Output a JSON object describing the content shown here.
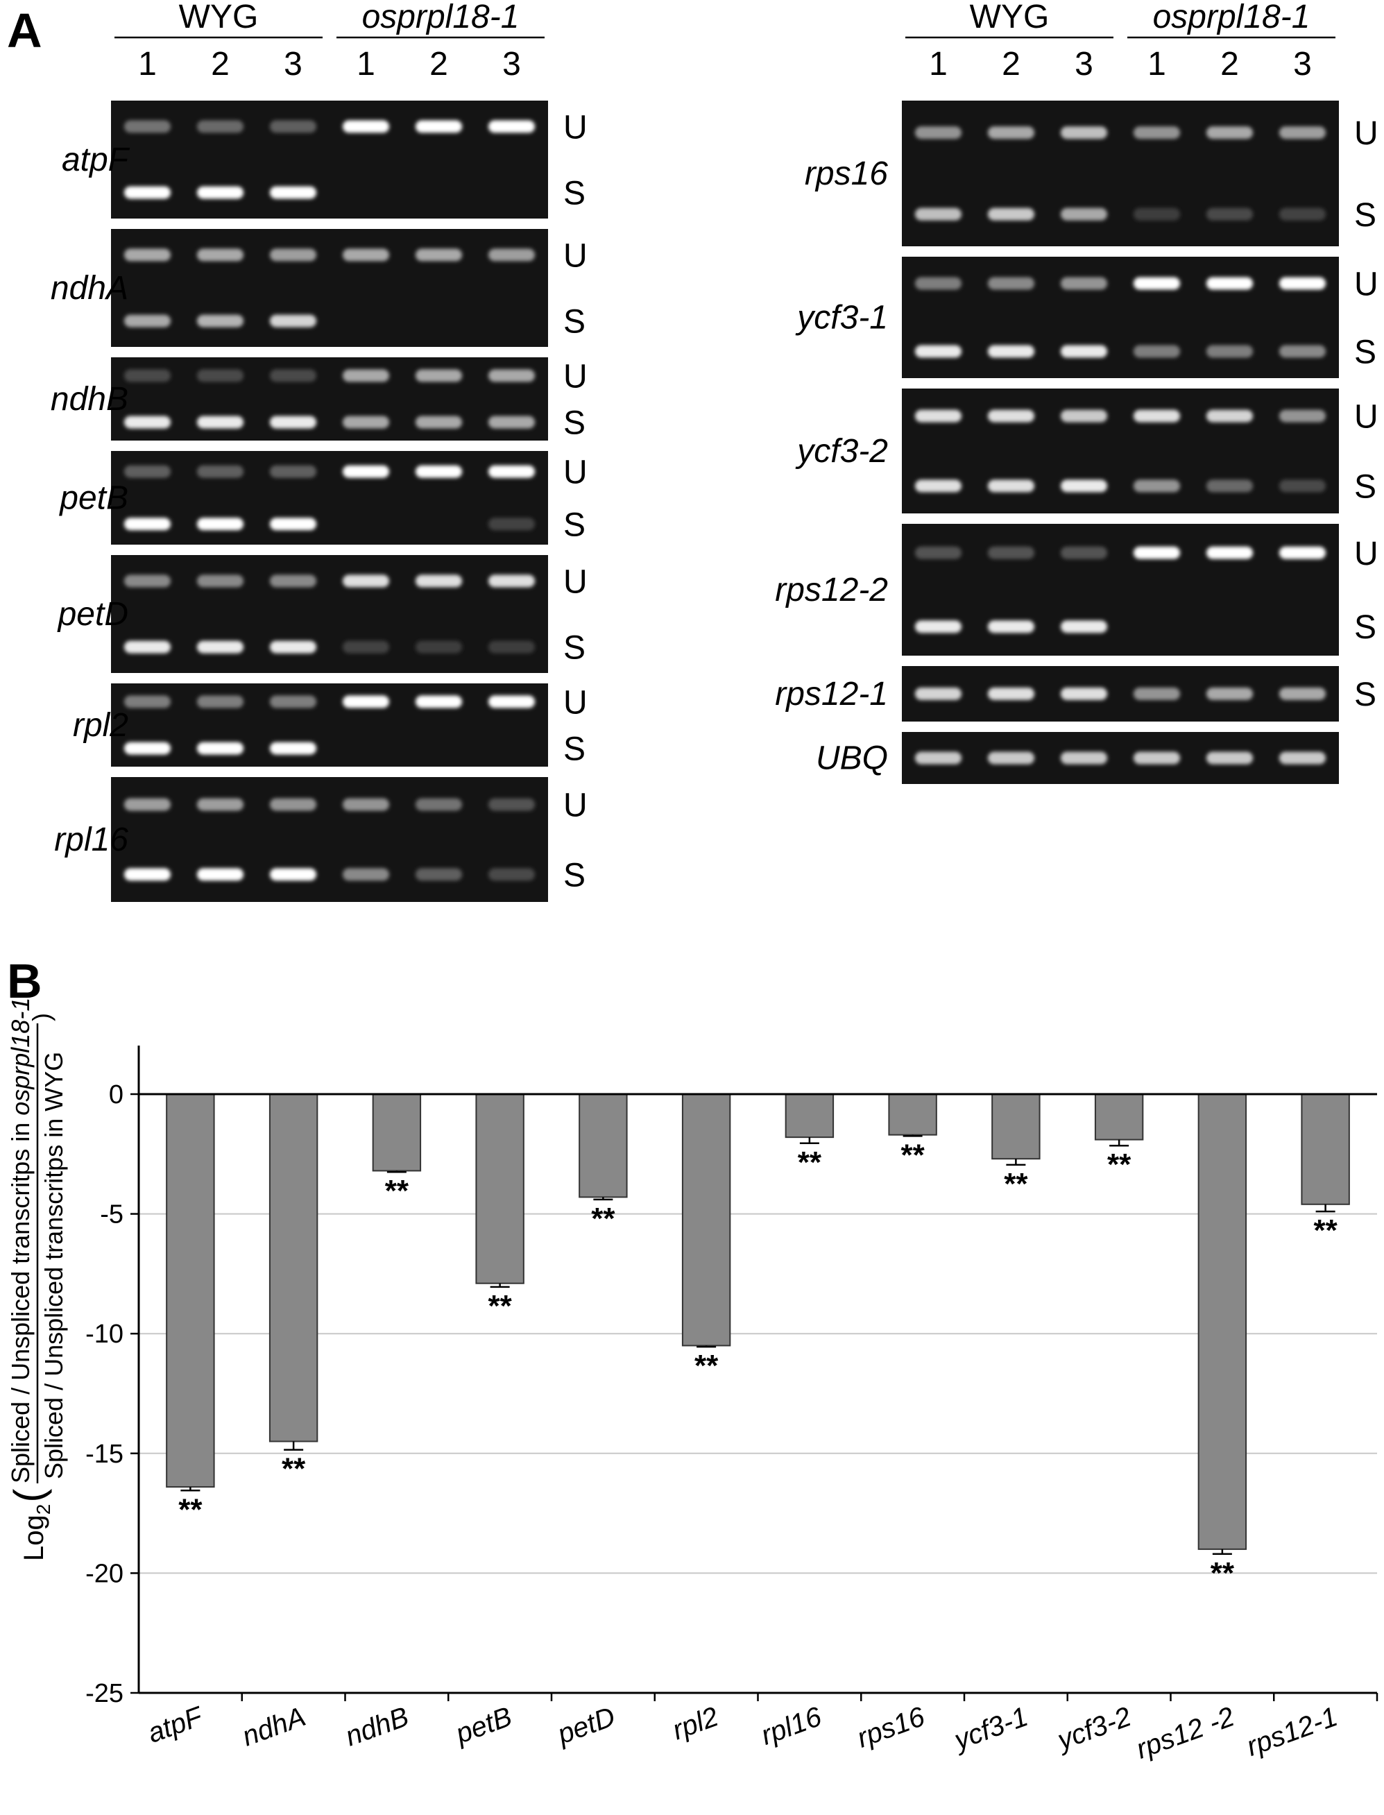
{
  "panel_a": {
    "label": "A",
    "groups": [
      {
        "name": "WYG",
        "italic": false
      },
      {
        "name": "osprpl18-1",
        "italic": true
      }
    ],
    "lanes": [
      "1",
      "2",
      "3",
      "1",
      "2",
      "3"
    ],
    "left_gels": [
      {
        "gene": "atpF",
        "bands": [
          {
            "tag": "U",
            "intensity": [
              0.35,
              0.3,
              0.25,
              1.0,
              1.0,
              1.0
            ]
          },
          {
            "tag": "S",
            "intensity": [
              1.0,
              1.0,
              1.0,
              0,
              0,
              0
            ]
          }
        ]
      },
      {
        "gene": "ndhA",
        "bands": [
          {
            "tag": "U",
            "intensity": [
              0.6,
              0.6,
              0.55,
              0.6,
              0.6,
              0.55
            ]
          },
          {
            "tag": "S",
            "intensity": [
              0.6,
              0.65,
              0.8,
              0,
              0,
              0
            ]
          }
        ]
      },
      {
        "gene": "ndhB",
        "bands": [
          {
            "tag": "U",
            "intensity": [
              0.15,
              0.15,
              0.15,
              0.6,
              0.6,
              0.6
            ]
          },
          {
            "tag": "S",
            "intensity": [
              0.9,
              0.9,
              0.9,
              0.6,
              0.6,
              0.6
            ]
          }
        ]
      },
      {
        "gene": "petB",
        "bands": [
          {
            "tag": "U",
            "intensity": [
              0.25,
              0.25,
              0.25,
              1.0,
              1.0,
              1.0
            ]
          },
          {
            "tag": "S",
            "intensity": [
              1.0,
              1.0,
              1.0,
              0,
              0,
              0.12
            ]
          }
        ]
      },
      {
        "gene": "petD",
        "bands": [
          {
            "tag": "U",
            "intensity": [
              0.45,
              0.45,
              0.45,
              0.85,
              0.85,
              0.85
            ]
          },
          {
            "tag": "S",
            "intensity": [
              0.9,
              0.9,
              0.9,
              0.12,
              0.1,
              0.1
            ]
          }
        ]
      },
      {
        "gene": "rpl2",
        "bands": [
          {
            "tag": "U",
            "intensity": [
              0.4,
              0.4,
              0.4,
              1.0,
              1.0,
              1.0
            ]
          },
          {
            "tag": "S",
            "intensity": [
              1.0,
              1.0,
              1.0,
              0,
              0,
              0
            ]
          }
        ]
      },
      {
        "gene": "rpl16",
        "bands": [
          {
            "tag": "U",
            "intensity": [
              0.55,
              0.55,
              0.5,
              0.5,
              0.35,
              0.2
            ]
          },
          {
            "tag": "S",
            "intensity": [
              1.0,
              1.0,
              1.0,
              0.45,
              0.25,
              0.15
            ]
          }
        ]
      }
    ],
    "right_gels": [
      {
        "gene": "rps16",
        "bands": [
          {
            "tag": "U",
            "intensity": [
              0.5,
              0.6,
              0.7,
              0.5,
              0.6,
              0.55
            ]
          },
          {
            "tag": "S",
            "intensity": [
              0.7,
              0.75,
              0.6,
              0.1,
              0.15,
              0.12
            ]
          }
        ]
      },
      {
        "gene": "ycf3-1",
        "bands": [
          {
            "tag": "U",
            "intensity": [
              0.4,
              0.45,
              0.5,
              1.0,
              1.0,
              1.0
            ]
          },
          {
            "tag": "S",
            "intensity": [
              0.9,
              0.9,
              0.9,
              0.4,
              0.4,
              0.45
            ]
          }
        ]
      },
      {
        "gene": "ycf3-2",
        "bands": [
          {
            "tag": "U",
            "intensity": [
              0.85,
              0.85,
              0.75,
              0.85,
              0.8,
              0.5
            ]
          },
          {
            "tag": "S",
            "intensity": [
              0.85,
              0.85,
              0.9,
              0.5,
              0.3,
              0.15
            ]
          }
        ]
      },
      {
        "gene": "rps12-2",
        "bands": [
          {
            "tag": "U",
            "intensity": [
              0.2,
              0.2,
              0.2,
              1.0,
              1.0,
              1.0
            ]
          },
          {
            "tag": "S",
            "intensity": [
              0.9,
              0.9,
              0.9,
              0,
              0,
              0
            ]
          }
        ]
      },
      {
        "gene": "rps12-1",
        "bands": [
          {
            "tag": "S",
            "intensity": [
              0.8,
              0.85,
              0.85,
              0.5,
              0.6,
              0.6
            ]
          }
        ]
      },
      {
        "gene": "UBQ",
        "bands": [
          {
            "tag": "",
            "intensity": [
              0.75,
              0.75,
              0.75,
              0.75,
              0.75,
              0.75
            ]
          }
        ]
      }
    ]
  },
  "panel_b": {
    "label": "B",
    "ylabel_prefix": "Log",
    "ylabel_sub": "2",
    "ylabel_numerator": "Spliced / Unspliced transcritps in ",
    "ylabel_numerator_italic": "osprpl18-1",
    "ylabel_denominator": "Spliced / Unspliced transcritps in WYG"
  },
  "chart_data": {
    "type": "bar",
    "categories": [
      "atpF",
      "ndhA",
      "ndhB",
      "petB",
      "petD",
      "rpl2",
      "rpl16",
      "rps16",
      "ycf3-1",
      "ycf3-2",
      "rps12 -2",
      "rps12-1"
    ],
    "values": [
      -16.4,
      -14.5,
      -3.2,
      -7.9,
      -4.3,
      -10.5,
      -1.8,
      -1.7,
      -2.7,
      -1.9,
      -19.0,
      -4.6
    ],
    "errors": [
      0.15,
      0.35,
      0.05,
      0.15,
      0.1,
      0.05,
      0.25,
      0.05,
      0.25,
      0.25,
      0.2,
      0.3
    ],
    "annotations": [
      "**",
      "**",
      "**",
      "**",
      "**",
      "**",
      "**",
      "**",
      "**",
      "**",
      "**",
      "**"
    ],
    "ylim": [
      -25,
      0
    ],
    "yticks": [
      0,
      -5,
      -10,
      -15,
      -20,
      -25
    ],
    "grid": true,
    "bar_color": "#888888"
  }
}
